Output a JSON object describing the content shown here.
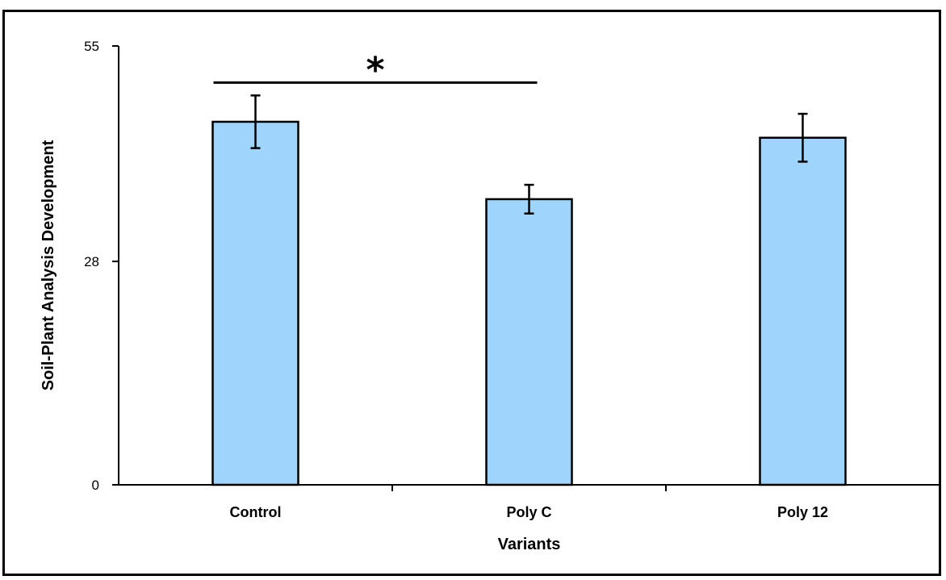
{
  "chart_data": {
    "type": "bar",
    "categories": [
      "Control",
      "Poly C",
      "Poly 12"
    ],
    "values": [
      45.5,
      35.8,
      43.5
    ],
    "error": [
      3.3,
      1.8,
      3.0
    ],
    "xlabel": "Variants",
    "ylabel": "Soil-Plant Analysis Development",
    "ylim": [
      0,
      55
    ],
    "yticks": [
      0,
      28,
      55
    ],
    "grid": false,
    "legend": "none",
    "bar_color": "#9fd5fc",
    "significance": {
      "from": "Control",
      "to": "Poly C",
      "symbol": "*"
    }
  }
}
